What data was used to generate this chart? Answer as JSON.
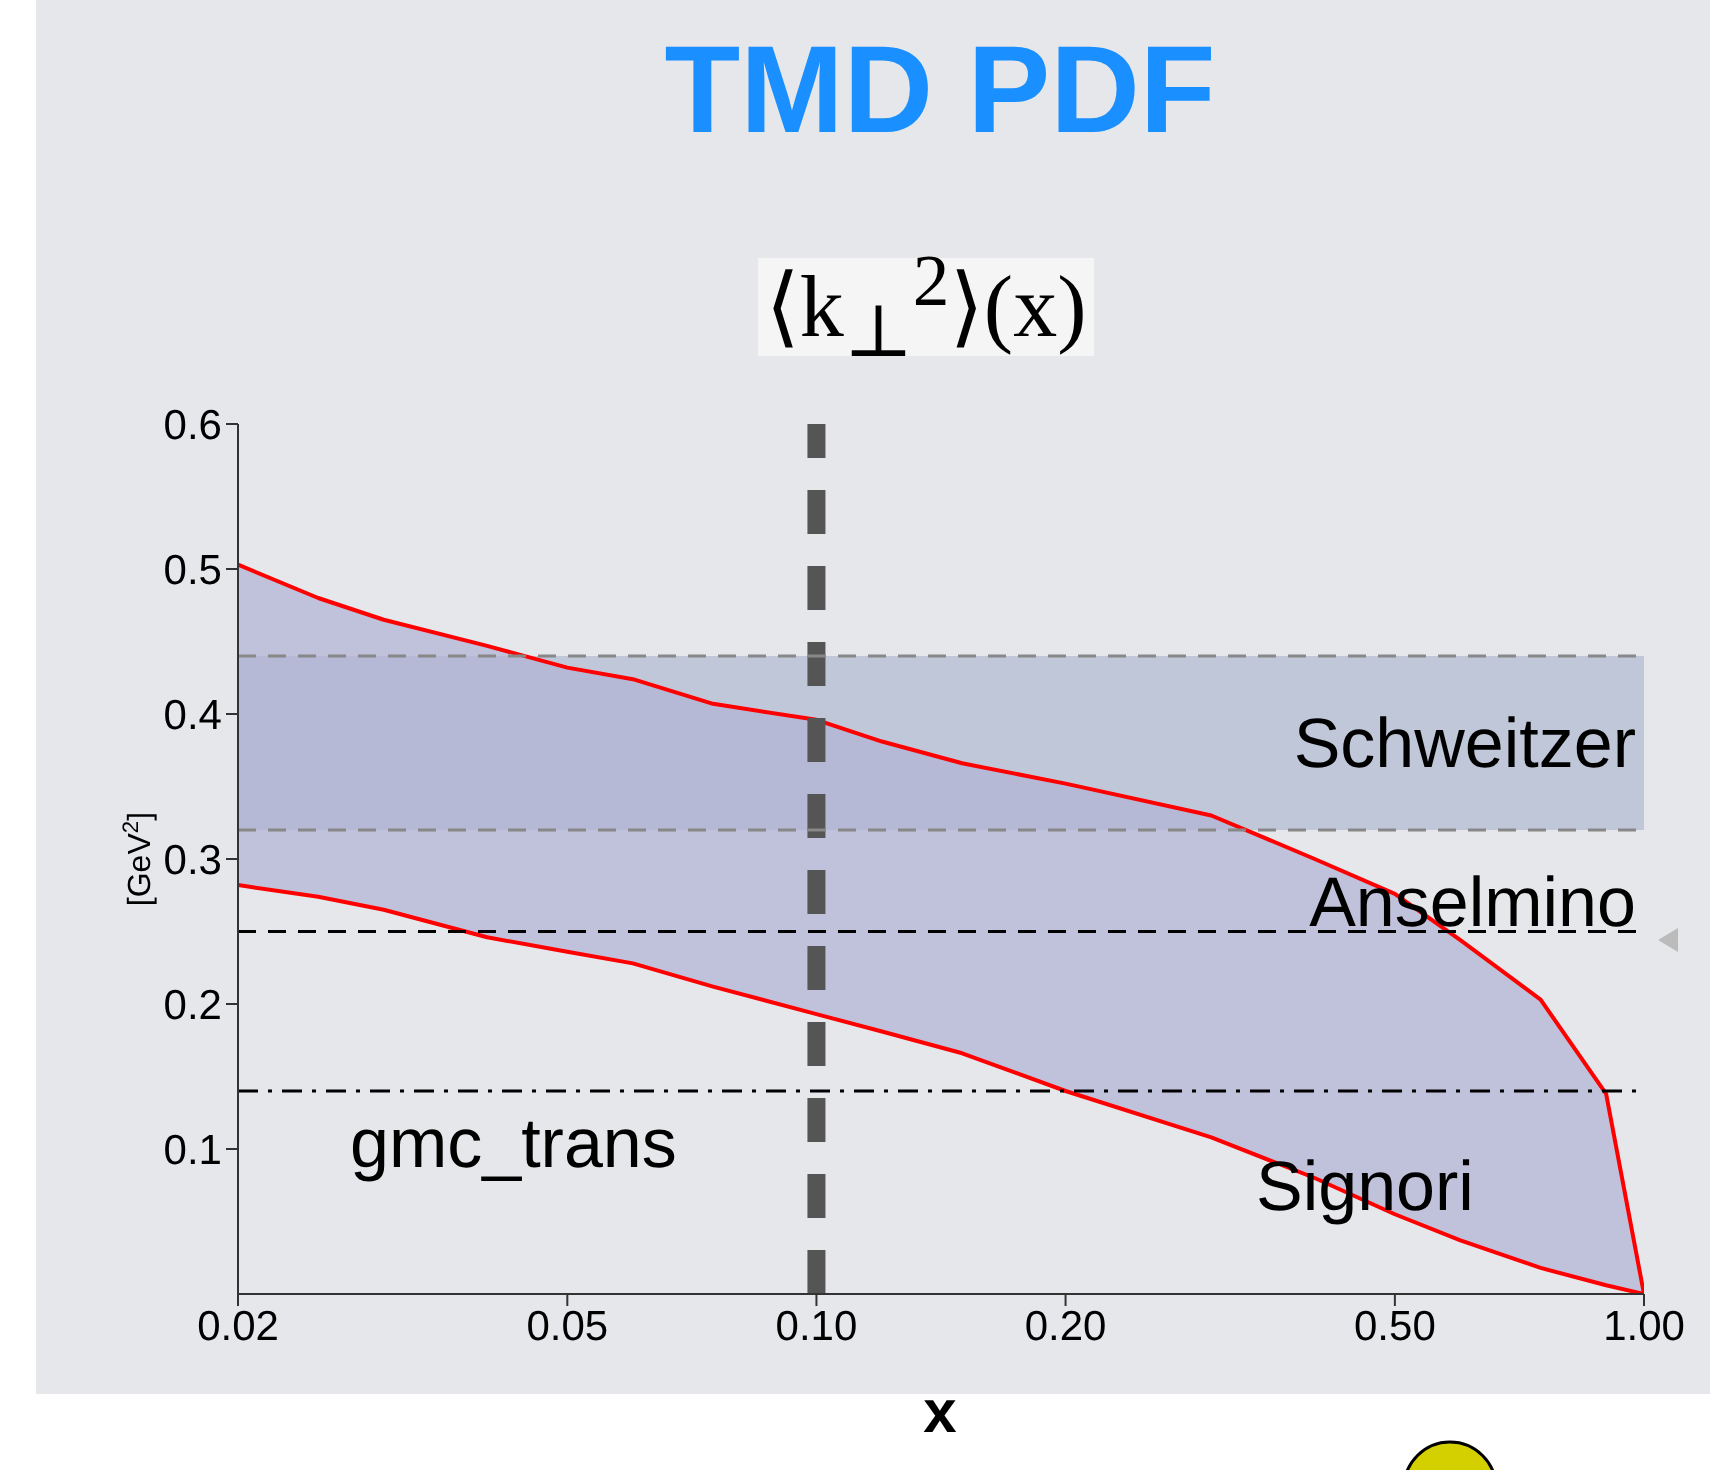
{
  "chart_data": {
    "type": "area",
    "title": "TMD PDF",
    "subtitle": "⟨k$_{⊥}$$^{2}$⟩(x)",
    "xlabel": "x",
    "ylabel": "[GeV$^{2}$]",
    "log": "x",
    "xlim": [
      0.02,
      1.0
    ],
    "xticks": [
      0.02,
      0.05,
      {
        "value": 0.1,
        "label": "0.10"
      },
      {
        "value": 0.2,
        "label": "0.20"
      },
      {
        "value": 0.5,
        "label": "0.50"
      },
      {
        "value": 1.0,
        "label": "1.00"
      }
    ],
    "ylim": [
      0,
      0.6
    ],
    "yticks": [
      0.1,
      0.2,
      0.3,
      0.4,
      0.5,
      0.6
    ],
    "grid": false,
    "legend": false,
    "x": [
      0.02,
      0.025,
      0.03,
      0.04,
      0.05,
      0.06,
      0.075,
      0.1,
      0.12,
      0.15,
      0.2,
      0.3,
      0.4,
      0.5,
      0.6,
      0.75,
      0.9,
      1.0
    ],
    "series": [
      {
        "type": "line",
        "color": "#ff0000",
        "values": [
          0.503,
          0.48,
          0.465,
          0.447,
          0.432,
          0.424,
          0.407,
          0.396,
          0.381,
          0.366,
          0.352,
          0.33,
          0.3,
          0.276,
          0.244,
          0.203,
          0.138,
          0
        ]
      },
      {
        "type": "line",
        "color": "#ff0000",
        "values": [
          0.282,
          0.274,
          0.265,
          0.246,
          0.236,
          0.228,
          0.212,
          0.193,
          0.181,
          0.166,
          0.14,
          0.108,
          0.08,
          0.055,
          0.037,
          0.018,
          0.006,
          0
        ]
      }
    ],
    "bands": [
      {
        "axis": "y",
        "from": 0.32,
        "to": 0.44,
        "label": "Schweitzer",
        "color": "#a6b2cc"
      }
    ],
    "ref_lines": [
      {
        "axis": "y",
        "value": 0.25,
        "label": "Anselmino",
        "color": "#000000",
        "line_style": "dashed"
      },
      {
        "axis": "y",
        "value": 0.14,
        "label": "gmc_trans",
        "color": "#000000",
        "line_style": "dashdot"
      },
      {
        "axis": "x",
        "value": 0.1,
        "color": "#555555",
        "line_style": "dashed"
      },
      {
        "axis": "y",
        "value": 0.32,
        "color": "#888888",
        "line_style": "dashed"
      },
      {
        "axis": "y",
        "value": 0.44,
        "color": "#888888",
        "line_style": "dashed"
      }
    ],
    "annotations": [
      "Signori"
    ]
  }
}
